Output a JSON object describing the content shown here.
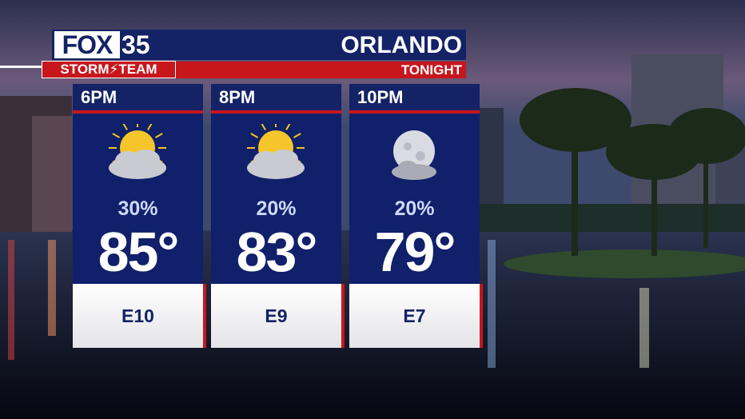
{
  "header": {
    "logo": "FOX",
    "channel": "35",
    "team": "STORM⚡TEAM",
    "location": "ORLANDO",
    "period": "TONIGHT"
  },
  "forecast": [
    {
      "time": "6PM",
      "icon": "partly-cloudy",
      "precip": "30%",
      "temp": "85°",
      "wind": "E10"
    },
    {
      "time": "8PM",
      "icon": "partly-cloudy",
      "precip": "20%",
      "temp": "83°",
      "wind": "E9"
    },
    {
      "time": "10PM",
      "icon": "moon-cloud",
      "precip": "20%",
      "temp": "79°",
      "wind": "E7"
    }
  ]
}
